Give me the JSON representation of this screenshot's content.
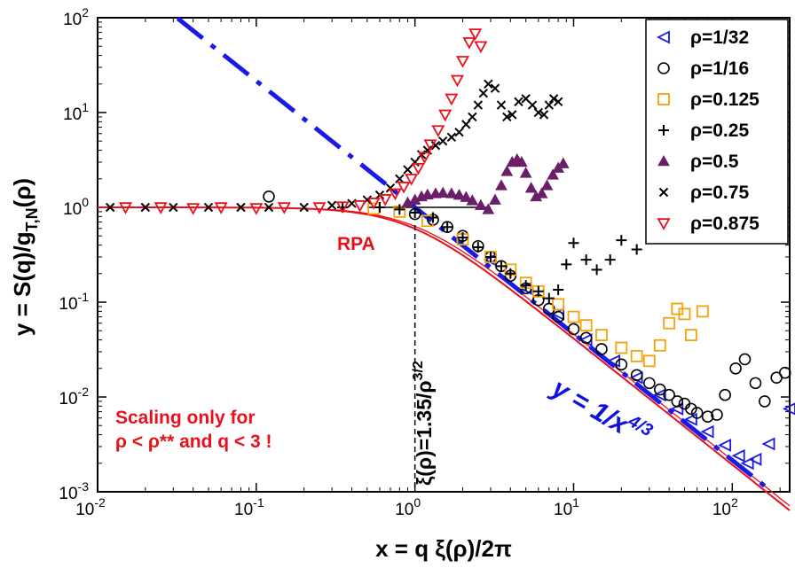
{
  "chart_data": {
    "type": "scatter",
    "xscale": "log",
    "yscale": "log",
    "xlim": [
      0.01,
      230
    ],
    "ylim": [
      0.001,
      100
    ],
    "xlabel": {
      "main": "x = q ξ(ρ)/2π"
    },
    "ylabel": {
      "main": "y = S(q)/g",
      "sub": "T,N",
      "tail": "(ρ)"
    },
    "xticks": [
      {
        "value": 0.01,
        "base": "10",
        "exp": "-2"
      },
      {
        "value": 0.1,
        "base": "10",
        "exp": "-1"
      },
      {
        "value": 1,
        "base": "10",
        "exp": "0"
      },
      {
        "value": 10,
        "base": "10",
        "exp": "1"
      },
      {
        "value": 100,
        "base": "10",
        "exp": "2"
      }
    ],
    "yticks": [
      {
        "value": 0.001,
        "base": "10",
        "exp": "-3"
      },
      {
        "value": 0.01,
        "base": "10",
        "exp": "-2"
      },
      {
        "value": 0.1,
        "base": "10",
        "exp": "-1"
      },
      {
        "value": 1,
        "base": "10",
        "exp": "0"
      },
      {
        "value": 10,
        "base": "10",
        "exp": "1"
      },
      {
        "value": 100,
        "base": "10",
        "exp": "2"
      }
    ],
    "grid": false,
    "legend_position": "top-right",
    "series": [
      {
        "name": "ρ=1/32",
        "marker": "triangle-left",
        "color": "#1a1ae6",
        "x": [
          3.0,
          5.0,
          8.0,
          12.0,
          18.0,
          25.0,
          35.0,
          45.0,
          55.0,
          70.0,
          90.0,
          110.0,
          125.0,
          140.0,
          170.0,
          230.0
        ],
        "y": [
          0.28,
          0.14,
          0.075,
          0.04,
          0.024,
          0.016,
          0.0105,
          0.0075,
          0.0058,
          0.0043,
          0.0031,
          0.0024,
          0.002,
          0.0022,
          0.0032,
          0.0075
        ]
      },
      {
        "name": "ρ=1/16",
        "marker": "circle",
        "color": "#000000",
        "x": [
          0.12,
          1.0,
          1.3,
          1.6,
          2.0,
          2.5,
          3.0,
          3.5,
          4.0,
          5.0,
          6.0,
          7.0,
          8.0,
          10.0,
          12.0,
          15.0,
          20.0,
          25.0,
          30.0,
          35.0,
          40.0,
          45.0,
          50.0,
          55.0,
          60.0,
          70.0,
          80.0,
          90.0,
          105.0,
          120.0,
          140.0,
          160.0,
          190.0,
          215.0
        ],
        "y": [
          1.3,
          0.85,
          0.74,
          0.62,
          0.5,
          0.39,
          0.3,
          0.24,
          0.19,
          0.14,
          0.105,
          0.085,
          0.07,
          0.052,
          0.042,
          0.032,
          0.022,
          0.017,
          0.014,
          0.012,
          0.0105,
          0.009,
          0.0085,
          0.0075,
          0.0068,
          0.0062,
          0.0065,
          0.0105,
          0.02,
          0.025,
          0.014,
          0.009,
          0.016,
          0.018
        ]
      },
      {
        "name": "ρ=0.125",
        "marker": "square",
        "color": "#f5a20a",
        "x": [
          0.55,
          0.8,
          1.2,
          2.0,
          3.0,
          4.0,
          5.0,
          6.0,
          8.0,
          10.0,
          12.0,
          15.0,
          20.0,
          25.0,
          30.0,
          35.0,
          40.0,
          45.0,
          50.0,
          55.0,
          65.0
        ],
        "y": [
          0.97,
          0.9,
          0.72,
          0.46,
          0.3,
          0.22,
          0.16,
          0.13,
          0.095,
          0.07,
          0.057,
          0.045,
          0.033,
          0.027,
          0.024,
          0.035,
          0.06,
          0.085,
          0.075,
          0.045,
          0.08
        ]
      },
      {
        "name": "ρ=0.25",
        "marker": "plus",
        "color": "#000000",
        "x": [
          0.35,
          0.6,
          0.8,
          1.0,
          1.3,
          1.6,
          2.0,
          2.5,
          3.0,
          3.5,
          4.0,
          5.0,
          6.0,
          7.0,
          8.0,
          9.0,
          10.0,
          12.0,
          14.0,
          17.0,
          20.0,
          25.0
        ],
        "y": [
          1.0,
          1.0,
          0.95,
          0.88,
          0.78,
          0.62,
          0.48,
          0.38,
          0.3,
          0.24,
          0.2,
          0.15,
          0.13,
          0.11,
          0.135,
          0.25,
          0.42,
          0.28,
          0.22,
          0.28,
          0.45,
          0.36
        ]
      },
      {
        "name": "ρ=0.5",
        "marker": "triangle-up",
        "color": "#6a1f68",
        "x": [
          0.9,
          1.0,
          1.1,
          1.2,
          1.35,
          1.5,
          1.7,
          1.9,
          2.1,
          2.3,
          2.6,
          2.9,
          3.2,
          3.5,
          3.8,
          4.1,
          4.4,
          4.7,
          5.0,
          5.4,
          5.8,
          6.3,
          6.8,
          7.4,
          8.0,
          8.6
        ],
        "y": [
          1.12,
          1.2,
          1.3,
          1.36,
          1.4,
          1.42,
          1.4,
          1.35,
          1.28,
          1.18,
          1.05,
          0.95,
          1.2,
          1.7,
          2.4,
          3.0,
          3.2,
          3.0,
          2.3,
          1.6,
          1.3,
          1.4,
          1.7,
          2.2,
          2.6,
          2.9
        ]
      },
      {
        "name": "ρ=0.75",
        "marker": "cross",
        "color": "#000000",
        "x": [
          0.012,
          0.02,
          0.03,
          0.05,
          0.08,
          0.12,
          0.2,
          0.3,
          0.4,
          0.5,
          0.6,
          0.7,
          0.8,
          0.9,
          1.0,
          1.1,
          1.2,
          1.35,
          1.5,
          1.7,
          1.9,
          2.1,
          2.3,
          2.5,
          2.7,
          2.9,
          3.2,
          3.5,
          3.8,
          4.1,
          4.5,
          5.0,
          5.5,
          6.0,
          6.5,
          7.0,
          7.5,
          8.0
        ],
        "y": [
          1.0,
          1.0,
          1.0,
          1.0,
          1.0,
          1.0,
          1.0,
          1.05,
          1.1,
          1.2,
          1.35,
          1.6,
          2.0,
          2.5,
          3.0,
          3.6,
          4.0,
          4.5,
          5.0,
          5.5,
          6.2,
          7.5,
          9.0,
          12.0,
          16.0,
          20.0,
          18.0,
          12.0,
          9.0,
          9.5,
          13.0,
          14.0,
          12.0,
          10.0,
          9.5,
          12.0,
          14.0,
          13.0
        ]
      },
      {
        "name": "ρ=0.875",
        "marker": "triangle-down",
        "color": "#e8101a",
        "x": [
          0.015,
          0.025,
          0.04,
          0.06,
          0.1,
          0.15,
          0.25,
          0.35,
          0.45,
          0.55,
          0.65,
          0.75,
          0.85,
          0.95,
          1.05,
          1.15,
          1.25,
          1.4,
          1.55,
          1.7,
          1.85,
          2.0,
          2.2,
          2.4,
          2.6
        ],
        "y": [
          1.0,
          1.0,
          0.98,
          1.0,
          0.98,
          1.0,
          1.0,
          1.02,
          1.05,
          1.12,
          1.22,
          1.4,
          1.65,
          2.0,
          2.6,
          3.4,
          4.6,
          6.5,
          9.5,
          14.0,
          22.0,
          35.0,
          55.0,
          68.0,
          50.0
        ]
      }
    ],
    "lines": [
      {
        "id": "scaling-line",
        "label": "y = 1/x",
        "label_exp": "4/3",
        "color": "#1a1ae6",
        "style": "dashed",
        "x_from": 0.032,
        "x_to": 170.0,
        "exponent": -1.3333
      },
      {
        "id": "rpa-line",
        "label": "RPA",
        "color": "#e8101a",
        "style": "solid"
      },
      {
        "id": "reference-line",
        "color": "#000000",
        "style": "solid",
        "x_from": 0.5,
        "x_to": 3.0,
        "y": 1.0
      }
    ],
    "annotations": {
      "xi_vline": {
        "x": 1.0,
        "label_main": "ξ(ρ)=1.35/ρ",
        "label_exp": "3/2"
      },
      "rpa_label": "RPA",
      "scaling_note": [
        "Scaling only for",
        "ρ < ρ** and q < 3 !"
      ]
    }
  }
}
